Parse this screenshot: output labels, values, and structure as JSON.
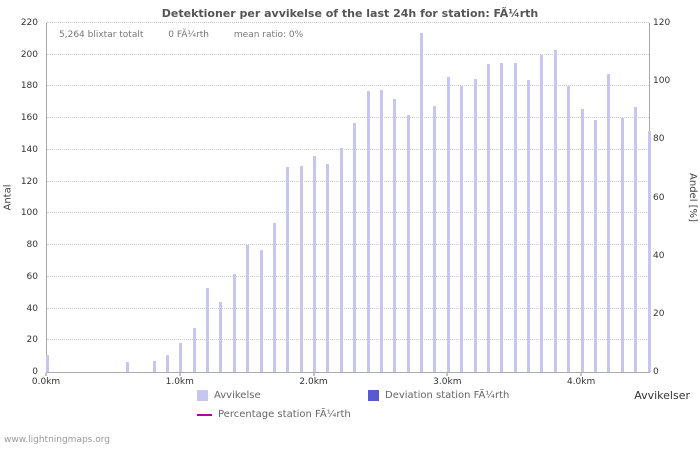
{
  "page": {
    "watermark": "www.lightningmaps.org"
  },
  "chart_data": {
    "type": "bar",
    "title": "Detektioner per avvikelse of the last 24h for station: FÃ¼rth",
    "stats": {
      "total": "5,264 blixtar totalt",
      "station": "0 FÃ¼rth",
      "mean_ratio": "mean ratio: 0%"
    },
    "xlabel": "Avvikelser",
    "ylabel_left": "Antal",
    "ylabel_right": "Andel [%]",
    "x_unit": "km",
    "x_max_km": 4.5,
    "x": [
      0.0,
      0.1,
      0.2,
      0.3,
      0.4,
      0.5,
      0.6,
      0.7,
      0.8,
      0.9,
      1.0,
      1.1,
      1.2,
      1.3,
      1.4,
      1.5,
      1.6,
      1.7,
      1.8,
      1.9,
      2.0,
      2.1,
      2.2,
      2.3,
      2.4,
      2.5,
      2.6,
      2.7,
      2.8,
      2.9,
      3.0,
      3.1,
      3.2,
      3.3,
      3.4,
      3.5,
      3.6,
      3.7,
      3.8,
      3.9,
      4.0,
      4.1,
      4.2,
      4.3,
      4.4,
      4.5
    ],
    "values": [
      11,
      0,
      0,
      0,
      0,
      0,
      6,
      0,
      7,
      11,
      18,
      28,
      53,
      44,
      62,
      80,
      77,
      94,
      129,
      130,
      136,
      131,
      141,
      157,
      177,
      178,
      172,
      162,
      214,
      168,
      186,
      180,
      185,
      194,
      195,
      195,
      184,
      200,
      203,
      180,
      166,
      159,
      188,
      160,
      167,
      152
    ],
    "ylim_left": [
      0,
      220
    ],
    "ylim_right": [
      0,
      120
    ],
    "yticks_left": [
      0,
      20,
      40,
      60,
      80,
      100,
      120,
      140,
      160,
      180,
      200,
      220
    ],
    "yticks_right": [
      0,
      20,
      40,
      60,
      80,
      100,
      120
    ],
    "xticks": [
      "0.0km",
      "1.0km",
      "2.0km",
      "3.0km",
      "4.0km"
    ],
    "xtick_positions_km": [
      0,
      1,
      2,
      3,
      4
    ],
    "grid": true,
    "legend_position": "bottom",
    "colors": {
      "bar": "#c6c6f0",
      "deviation": "#5a5ad0",
      "percentage": "#b4009b",
      "grid": "#cccccc",
      "axis": "#aaaaaa",
      "title": "#555555",
      "tick_text": "#333333",
      "legend_text": "#666666",
      "watermark": "#999999"
    },
    "legend": [
      {
        "label": "Avvikelse",
        "type": "square",
        "color": "#c6c6f0"
      },
      {
        "label": "Deviation station FÃ¼rth",
        "type": "square",
        "color": "#5a5ad0"
      },
      {
        "label": "Percentage station FÃ¼rth",
        "type": "line",
        "color": "#b4009b"
      }
    ]
  }
}
